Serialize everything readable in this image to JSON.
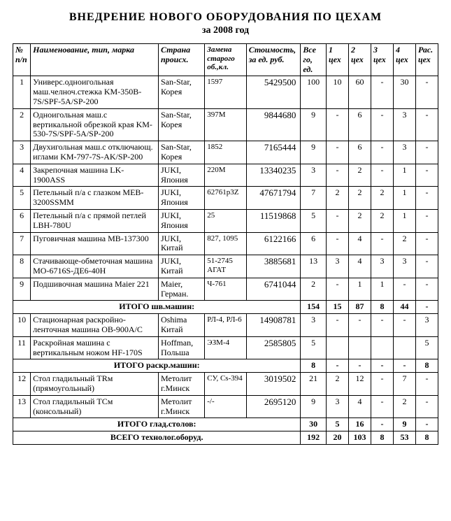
{
  "title": "ВНЕДРЕНИЕ НОВОГО ОБОРУДОВАНИЯ ПО ЦЕХАМ",
  "subtitle": "за 2008 год",
  "headers": {
    "n": "№ п/п",
    "name": "Наименование, тип, марка",
    "country": "Страна происх.",
    "repl": "Замена старого об.,кл.",
    "cost": "Стоимость, за ед. руб.",
    "qty": "Все го, ед.",
    "w1": "1 цех",
    "w2": "2 цех",
    "w3": "3 цех",
    "w4": "4 цех",
    "wr": "Рас. цех"
  },
  "rows": [
    {
      "n": "1",
      "name": "Универс.одноигольная маш.челноч.стежка KM-350B-7S/SPF-5A/SP-200",
      "country": "San-Star, Корея",
      "repl": "1597",
      "cost": "5429500",
      "qty": "100",
      "w1": "10",
      "w2": "60",
      "w3": "-",
      "w4": "30",
      "wr": "-"
    },
    {
      "n": "2",
      "name": "Одноигольная маш.с вертикальной обрезкой края KM-530-7S/SPF-5A/SP-200",
      "country": "San-Star, Корея",
      "repl": "397М",
      "cost": "9844680",
      "qty": "9",
      "w1": "-",
      "w2": "6",
      "w3": "-",
      "w4": "3",
      "wr": "-"
    },
    {
      "n": "3",
      "name": "Двухигольная маш.с отключающ. иглами KM-797-7S-AK/SP-200",
      "country": "San-Star, Корея",
      "repl": "1852",
      "cost": "7165444",
      "qty": "9",
      "w1": "-",
      "w2": "6",
      "w3": "-",
      "w4": "3",
      "wr": "-"
    },
    {
      "n": "4",
      "name": "Закрепочная машина LK-1900ASS",
      "country": "JUKI, Япония",
      "repl": "220М",
      "cost": "13340235",
      "qty": "3",
      "w1": "-",
      "w2": "2",
      "w3": "-",
      "w4": "1",
      "wr": "-"
    },
    {
      "n": "5",
      "name": "Петельный п/а с глазком MEB-3200SSMM",
      "country": "JUKI, Япония",
      "repl": "62761р3Z",
      "cost": "47671794",
      "qty": "7",
      "w1": "2",
      "w2": "2",
      "w3": "2",
      "w4": "1",
      "wr": "-"
    },
    {
      "n": "6",
      "name": "Петельный п/а с прямой петлей LBH-780U",
      "country": "JUKI, Япония",
      "repl": "25",
      "cost": "11519868",
      "qty": "5",
      "w1": "-",
      "w2": "2",
      "w3": "2",
      "w4": "1",
      "wr": "-"
    },
    {
      "n": "7",
      "name": "Пуговичная машина MB-137300",
      "country": "JUKI, Китай",
      "repl": "827, 1095",
      "cost": "6122166",
      "qty": "6",
      "w1": "-",
      "w2": "4",
      "w3": "-",
      "w4": "2",
      "wr": "-"
    },
    {
      "n": "8",
      "name": "Стачивающе-обметочная машина MO-6716S-ДЕ6-40H",
      "country": "JUKI, Китай",
      "repl": "51-2745 АГАТ",
      "cost": "3885681",
      "qty": "13",
      "w1": "3",
      "w2": "4",
      "w3": "3",
      "w4": "3",
      "wr": "-"
    },
    {
      "n": "9",
      "name": "Подшивочная машина Maier 221",
      "country": "Maier, Герман.",
      "repl": "Ч-761",
      "cost": "6741044",
      "qty": "2",
      "w1": "-",
      "w2": "1",
      "w3": "1",
      "w4": "-",
      "wr": "-"
    }
  ],
  "sum1": {
    "label": "ИТОГО шв.машин:",
    "qty": "154",
    "w1": "15",
    "w2": "87",
    "w3": "8",
    "w4": "44",
    "wr": "-"
  },
  "rows2": [
    {
      "n": "10",
      "name": "Стационарная раскройно-ленточная машина OB-900A/C",
      "country": "Oshima Китай",
      "repl": "РЛ-4, РЛ-6",
      "cost": "14908781",
      "qty": "3",
      "w1": "-",
      "w2": "-",
      "w3": "-",
      "w4": "-",
      "wr": "3"
    },
    {
      "n": "11",
      "name": "Раскройная машина с вертикальным ножом HF-170S",
      "country": "Hoffman, Польша",
      "repl": "ЭЗМ-4",
      "cost": "2585805",
      "qty": "5",
      "w1": "",
      "w2": "",
      "w3": "",
      "w4": "",
      "wr": "5"
    }
  ],
  "sum2": {
    "label": "ИТОГО раскр.машин:",
    "qty": "8",
    "w1": "-",
    "w2": "-",
    "w3": "-",
    "w4": "-",
    "wr": "8"
  },
  "rows3": [
    {
      "n": "12",
      "name": "Стол гладильный TRм (прямоугольный)",
      "country": "Метолит г.Минск",
      "repl": "СУ, Cs-394",
      "cost": "3019502",
      "qty": "21",
      "w1": "2",
      "w2": "12",
      "w3": "-",
      "w4": "7",
      "wr": "-"
    },
    {
      "n": "13",
      "name": "Стол гладильный TCм (консольный)",
      "country": "Метолит г.Минск",
      "repl": "-/-",
      "cost": "2695120",
      "qty": "9",
      "w1": "3",
      "w2": "4",
      "w3": "-",
      "w4": "2",
      "wr": "-"
    }
  ],
  "sum3": {
    "label": "ИТОГО глад.столов:",
    "qty": "30",
    "w1": "5",
    "w2": "16",
    "w3": "-",
    "w4": "9",
    "wr": "-"
  },
  "total": {
    "label": "ВСЕГО технолог.оборуд.",
    "qty": "192",
    "w1": "20",
    "w2": "103",
    "w3": "8",
    "w4": "53",
    "wr": "8"
  }
}
